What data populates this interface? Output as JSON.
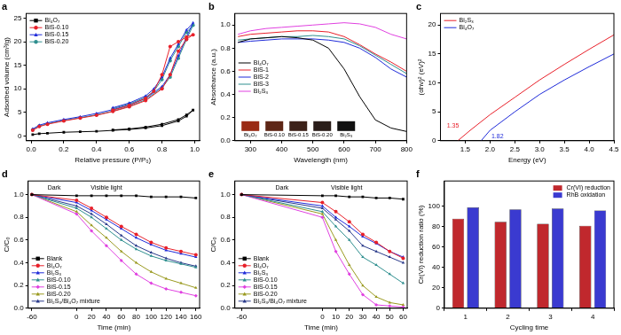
{
  "chart_data": [
    {
      "type": "line",
      "title": "a",
      "x_label": "Relative pressure (P/P₀)",
      "y_label": "Adsorbed volume (cm³/g)",
      "xlim": [
        -0.03,
        1.03
      ],
      "xticks": [
        {
          "value": 0,
          "label": "0.0"
        },
        0.2,
        0.4,
        0.6,
        0.8,
        {
          "value": 1,
          "label": "1.0"
        }
      ],
      "ylim": [
        -1,
        26
      ],
      "yticks": [
        0,
        5,
        10,
        15,
        20,
        25
      ],
      "grid": false,
      "legend": "top-left",
      "series": [
        {
          "name": "Bi₄O₇",
          "color": "#000000",
          "marker": "square",
          "x": [
            0.01,
            0.05,
            0.1,
            0.2,
            0.3,
            0.4,
            0.5,
            0.6,
            0.7,
            0.8,
            0.9,
            0.95,
            0.99,
            0.95,
            0.9,
            0.8,
            0.7,
            0.6,
            0.5
          ],
          "values": [
            0.3,
            0.5,
            0.6,
            0.8,
            0.9,
            1.0,
            1.2,
            1.4,
            1.7,
            2.2,
            3.2,
            4.2,
            5.5,
            4.5,
            3.5,
            2.5,
            1.9,
            1.5,
            1.3
          ]
        },
        {
          "name": "BiS-0.10",
          "color": "#e8202a",
          "marker": "circle",
          "x": [
            0.01,
            0.05,
            0.1,
            0.2,
            0.3,
            0.4,
            0.5,
            0.6,
            0.7,
            0.8,
            0.85,
            0.9,
            0.95,
            0.99,
            0.95,
            0.9,
            0.85,
            0.8,
            0.75,
            0.7,
            0.6,
            0.5
          ],
          "values": [
            1.2,
            2.0,
            2.5,
            3.2,
            3.8,
            4.4,
            5.2,
            6.2,
            7.5,
            10.0,
            13.0,
            18.0,
            20.5,
            21.5,
            21.0,
            20.0,
            19.0,
            13.0,
            9.5,
            8.0,
            6.5,
            5.5
          ]
        },
        {
          "name": "BiS-0.15",
          "color": "#1f2bd9",
          "marker": "triangle",
          "x": [
            0.01,
            0.05,
            0.1,
            0.2,
            0.3,
            0.4,
            0.5,
            0.6,
            0.7,
            0.8,
            0.85,
            0.9,
            0.95,
            0.99,
            0.95,
            0.9,
            0.85,
            0.8,
            0.75,
            0.7,
            0.6,
            0.5
          ],
          "values": [
            1.5,
            2.3,
            2.8,
            3.5,
            4.1,
            4.8,
            5.6,
            6.6,
            8.0,
            10.5,
            13.0,
            17.0,
            21.0,
            24.0,
            22.5,
            19.5,
            16.5,
            12.5,
            10.0,
            8.5,
            7.0,
            6.0
          ]
        },
        {
          "name": "BiS-0.20",
          "color": "#2f8f8f",
          "marker": "circle",
          "x": [
            0.01,
            0.05,
            0.1,
            0.2,
            0.3,
            0.4,
            0.5,
            0.6,
            0.7,
            0.8,
            0.85,
            0.9,
            0.95,
            0.99,
            0.95,
            0.9,
            0.85,
            0.8,
            0.75,
            0.7,
            0.6,
            0.5
          ],
          "values": [
            1.3,
            2.1,
            2.6,
            3.3,
            3.9,
            4.5,
            5.3,
            6.3,
            7.7,
            10.2,
            12.5,
            16.5,
            20.5,
            23.5,
            22.0,
            19.0,
            16.0,
            12.0,
            9.5,
            8.2,
            6.8,
            5.8
          ]
        }
      ]
    },
    {
      "type": "line",
      "title": "b",
      "x_label": "Wavelength (nm)",
      "y_label": "Absorbance (a.u.)",
      "xlim": [
        250,
        800
      ],
      "xticks": [
        300,
        400,
        500,
        600,
        700,
        800
      ],
      "ylim": [
        0,
        1.1
      ],
      "yticks": [
        {
          "value": 0,
          "label": "0.0"
        },
        0.2,
        0.4,
        0.6,
        0.8,
        {
          "value": 1,
          "label": "1.0"
        }
      ],
      "grid": false,
      "legend": "left",
      "inset_labels": [
        "Bi₄O₇",
        "BiS-0.10",
        "BiS-0.15",
        "BiS-0.20",
        "Bi₂S₃"
      ],
      "x": [
        260,
        300,
        350,
        400,
        450,
        500,
        550,
        600,
        650,
        700,
        750,
        800
      ],
      "series": [
        {
          "name": "Bi₄O₇",
          "color": "#000000",
          "marker": "none",
          "values": [
            0.85,
            0.88,
            0.89,
            0.9,
            0.89,
            0.87,
            0.8,
            0.62,
            0.38,
            0.18,
            0.11,
            0.08
          ]
        },
        {
          "name": "BiS-1",
          "color": "#e8202a",
          "marker": "none",
          "values": [
            0.9,
            0.92,
            0.93,
            0.94,
            0.95,
            0.95,
            0.94,
            0.9,
            0.83,
            0.75,
            0.68,
            0.6
          ]
        },
        {
          "name": "BiS-2",
          "color": "#1f2bd9",
          "marker": "none",
          "values": [
            0.85,
            0.86,
            0.87,
            0.88,
            0.88,
            0.88,
            0.87,
            0.85,
            0.8,
            0.72,
            0.62,
            0.55
          ]
        },
        {
          "name": "BiS-3",
          "color": "#2f8f8f",
          "marker": "none",
          "values": [
            0.87,
            0.88,
            0.89,
            0.9,
            0.9,
            0.91,
            0.9,
            0.88,
            0.82,
            0.74,
            0.66,
            0.58
          ]
        },
        {
          "name": "Bi₂S₃",
          "color": "#e040e0",
          "marker": "none",
          "values": [
            0.92,
            0.95,
            0.97,
            0.98,
            0.99,
            1.0,
            1.01,
            1.02,
            1.01,
            0.98,
            0.92,
            0.88
          ]
        }
      ]
    },
    {
      "type": "line",
      "title": "c",
      "x_label": "Energy (eV)",
      "y_label": "(αhν)² (eV)²",
      "xlim": [
        1.0,
        4.5
      ],
      "xticks": [
        1.5,
        {
          "value": 2,
          "label": "2.0"
        },
        2.5,
        {
          "value": 3,
          "label": "3.0"
        },
        3.5,
        {
          "value": 4,
          "label": "4.0"
        },
        4.5
      ],
      "ylim": [
        0,
        22
      ],
      "yticks": [
        0,
        5,
        10,
        15,
        20
      ],
      "grid": false,
      "legend": "top-left",
      "annotations": [
        {
          "text": "1.35",
          "x": 1.25,
          "y": 2.5,
          "color": "#e8202a"
        },
        {
          "text": "1.82",
          "x": 2.15,
          "y": 0.8,
          "color": "#1f2bd9"
        }
      ],
      "series": [
        {
          "name": "Bi₂S₃",
          "color": "#e8202a",
          "marker": "none",
          "x": [
            1.35,
            1.6,
            2.0,
            2.5,
            3.0,
            3.5,
            4.0,
            4.5
          ],
          "values": [
            0,
            1.8,
            4.5,
            7.5,
            10.5,
            13.2,
            15.8,
            18.3
          ]
        },
        {
          "name": "Bi₄O₇",
          "color": "#1f2bd9",
          "marker": "none",
          "x": [
            1.82,
            2.0,
            2.5,
            3.0,
            3.5,
            4.0,
            4.5
          ],
          "values": [
            0,
            1.8,
            5.0,
            8.0,
            10.5,
            12.8,
            15.0
          ]
        }
      ]
    },
    {
      "type": "line",
      "title": "d",
      "x_label": "Time (min)",
      "y_label": "C/C₀",
      "xlim": [
        -65,
        165
      ],
      "xticks": [
        -60,
        0,
        20,
        40,
        60,
        80,
        100,
        120,
        140,
        160
      ],
      "ylim": [
        0,
        1.12
      ],
      "yticks": [
        {
          "value": 0,
          "label": "0.0"
        },
        0.2,
        0.4,
        0.6,
        0.8,
        {
          "value": 1,
          "label": "1.0"
        }
      ],
      "grid": false,
      "legend": "bottom-left",
      "annotations": [
        {
          "text": "Dark",
          "x": -30,
          "y": 1.06
        },
        {
          "text": "Visible light",
          "x": 40,
          "y": 1.06
        }
      ],
      "x": [
        -60,
        0,
        20,
        40,
        60,
        80,
        100,
        120,
        140,
        160
      ],
      "series": [
        {
          "name": "Blank",
          "color": "#000000",
          "marker": "square",
          "values": [
            1,
            0.99,
            0.99,
            0.99,
            0.99,
            0.99,
            0.98,
            0.98,
            0.98,
            0.97
          ]
        },
        {
          "name": "Bi₄O₇",
          "color": "#e8202a",
          "marker": "circle",
          "values": [
            1,
            0.95,
            0.88,
            0.8,
            0.72,
            0.65,
            0.58,
            0.53,
            0.5,
            0.47
          ]
        },
        {
          "name": "Bi₂S₃",
          "color": "#1f2bd9",
          "marker": "triangle",
          "values": [
            1,
            0.93,
            0.86,
            0.78,
            0.7,
            0.62,
            0.56,
            0.51,
            0.48,
            0.45
          ]
        },
        {
          "name": "BiS-0.10",
          "color": "#2f8f8f",
          "marker": "triangle",
          "values": [
            1,
            0.88,
            0.8,
            0.7,
            0.6,
            0.52,
            0.46,
            0.42,
            0.39,
            0.36
          ]
        },
        {
          "name": "BiS-0.15",
          "color": "#e040e0",
          "marker": "diamond",
          "values": [
            1,
            0.83,
            0.68,
            0.55,
            0.42,
            0.3,
            0.22,
            0.17,
            0.14,
            0.11
          ]
        },
        {
          "name": "BiS-0.20",
          "color": "#9a9a20",
          "marker": "triangle",
          "values": [
            1,
            0.85,
            0.73,
            0.62,
            0.5,
            0.4,
            0.32,
            0.26,
            0.22,
            0.18
          ]
        },
        {
          "name": "Bi₂S₃/Bi₄O₇ mixture",
          "color": "#2a3a8a",
          "marker": "triangle",
          "values": [
            1,
            0.9,
            0.83,
            0.74,
            0.64,
            0.55,
            0.49,
            0.44,
            0.4,
            0.37
          ]
        }
      ]
    },
    {
      "type": "line",
      "title": "e",
      "x_label": "Time (min)",
      "y_label": "C/C₀",
      "xlim": [
        -65,
        63
      ],
      "xticks": [
        -60,
        0,
        10,
        20,
        30,
        40,
        50,
        60
      ],
      "ylim": [
        0,
        1.12
      ],
      "yticks": [
        {
          "value": 0,
          "label": "0.0"
        },
        0.2,
        0.4,
        0.6,
        0.8,
        {
          "value": 1,
          "label": "1.0"
        }
      ],
      "grid": false,
      "legend": "bottom-left",
      "annotations": [
        {
          "text": "Dark",
          "x": -30,
          "y": 1.06
        },
        {
          "text": "Visible light",
          "x": 18,
          "y": 1.06
        }
      ],
      "x": [
        -60,
        0,
        10,
        20,
        30,
        40,
        50,
        60
      ],
      "series": [
        {
          "name": "Blank",
          "color": "#000000",
          "marker": "square",
          "values": [
            1,
            0.99,
            0.99,
            0.98,
            0.98,
            0.97,
            0.97,
            0.96
          ]
        },
        {
          "name": "Bi₄O₇",
          "color": "#e8202a",
          "marker": "circle",
          "values": [
            1,
            0.93,
            0.85,
            0.76,
            0.65,
            0.58,
            0.5,
            0.44
          ]
        },
        {
          "name": "Bi₂S₃",
          "color": "#1f2bd9",
          "marker": "triangle",
          "values": [
            1,
            0.9,
            0.8,
            0.72,
            0.63,
            0.57,
            0.5,
            0.45
          ]
        },
        {
          "name": "BiS-0.10",
          "color": "#2f8f8f",
          "marker": "triangle",
          "values": [
            1,
            0.85,
            0.72,
            0.6,
            0.45,
            0.38,
            0.3,
            0.22
          ]
        },
        {
          "name": "BiS-0.15",
          "color": "#e040e0",
          "marker": "diamond",
          "values": [
            1,
            0.8,
            0.5,
            0.3,
            0.12,
            0.03,
            0.02,
            0.01
          ]
        },
        {
          "name": "BiS-0.20",
          "color": "#9a9a20",
          "marker": "triangle",
          "values": [
            1,
            0.83,
            0.6,
            0.38,
            0.2,
            0.1,
            0.05,
            0.03
          ]
        },
        {
          "name": "Bi₂S₃/Bi₄O₇ mixture",
          "color": "#2a3a8a",
          "marker": "triangle",
          "values": [
            1,
            0.88,
            0.78,
            0.68,
            0.55,
            0.5,
            0.45,
            0.4
          ]
        }
      ]
    },
    {
      "type": "bar",
      "title": "f",
      "x_label": "Cycling time",
      "y_label": "Cr(VI) reduction ratio (%)",
      "categories": [
        "1",
        "2",
        "3",
        "4"
      ],
      "ylim": [
        0,
        125
      ],
      "yticks": [
        0,
        20,
        40,
        60,
        80,
        100
      ],
      "grid": false,
      "legend": "top-right",
      "series": [
        {
          "name": "Cr(VI) reduction",
          "color": "#c0282d",
          "values": [
            88,
            85,
            83,
            81
          ]
        },
        {
          "name": "RhB oxidation",
          "color": "#3a3ad0",
          "values": [
            99,
            97,
            98,
            96
          ]
        }
      ]
    }
  ]
}
